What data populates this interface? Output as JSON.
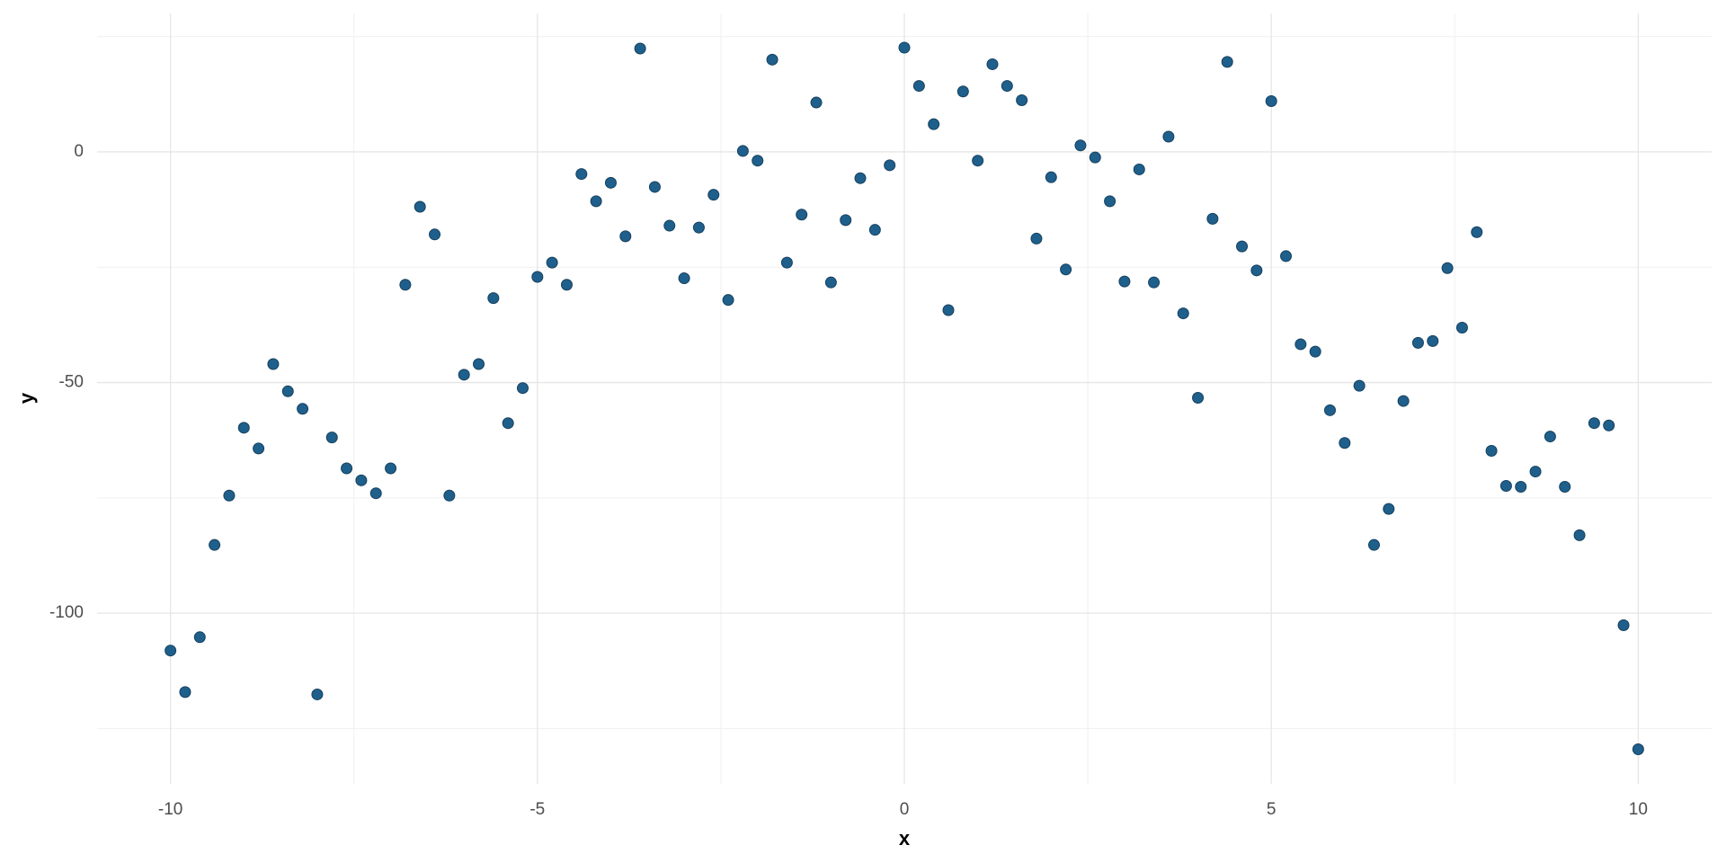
{
  "chart_data": {
    "type": "scatter",
    "x_label": "x",
    "y_label": "y",
    "x": [
      -10,
      -9.8,
      -9.6,
      -9.4,
      -9.2,
      -9,
      -8.8,
      -8.6,
      -8.4,
      -8.2,
      -8,
      -7.8,
      -7.6,
      -7.4,
      -7.2,
      -7,
      -6.8,
      -6.6,
      -6.4,
      -6.2,
      -6,
      -5.8,
      -5.6,
      -5.4,
      -5.2,
      -5,
      -4.8,
      -4.6,
      -4.4,
      -4.2,
      -4,
      -3.8,
      -3.6,
      -3.4,
      -3.2,
      -3,
      -2.8,
      -2.6,
      -2.4,
      -2.2,
      -2,
      -1.8,
      -1.6,
      -1.4,
      -1.2,
      -1,
      -0.8,
      -0.6,
      -0.4,
      -0.2,
      0,
      0.2,
      0.4,
      0.6,
      0.8,
      1,
      1.2,
      1.4,
      1.6,
      1.8,
      2,
      2.2,
      2.4,
      2.6,
      2.8,
      3,
      3.2,
      3.4,
      3.6,
      3.8,
      4,
      4.2,
      4.4,
      4.6,
      4.8,
      5,
      5.2,
      5.4,
      5.6,
      5.8,
      6,
      6.2,
      6.4,
      6.6,
      6.8,
      7,
      7.2,
      7.4,
      7.6,
      7.8,
      8,
      8.2,
      8.4,
      8.6,
      8.8,
      9,
      9.2,
      9.4,
      9.6,
      9.8,
      10
    ],
    "values": [
      -108.1,
      -117.1,
      -105.2,
      -85.2,
      -74.5,
      -59.8,
      -64.3,
      -46.0,
      -51.9,
      -55.7,
      -117.6,
      -61.9,
      -68.6,
      -71.2,
      -74.0,
      -68.6,
      -28.8,
      -11.9,
      -17.9,
      -74.5,
      -48.3,
      -46.0,
      -31.7,
      -58.8,
      -51.2,
      -27.1,
      -24.0,
      -28.8,
      -4.8,
      -10.7,
      -6.7,
      -18.3,
      22.4,
      -7.6,
      -16.0,
      -27.4,
      -16.4,
      -9.3,
      -32.1,
      0.2,
      -1.9,
      20.0,
      -24.0,
      -13.6,
      10.7,
      -28.3,
      -14.8,
      -5.7,
      -16.9,
      -2.9,
      22.6,
      14.3,
      6.0,
      -34.3,
      13.1,
      -1.9,
      19.0,
      14.3,
      11.2,
      -18.8,
      -5.5,
      -25.5,
      1.4,
      -1.2,
      -10.7,
      -28.1,
      -3.8,
      -28.3,
      3.3,
      -35.0,
      -53.3,
      -14.5,
      19.5,
      -20.5,
      -25.7,
      11.0,
      -22.6,
      -41.7,
      -43.3,
      -56.0,
      -63.1,
      -50.7,
      -85.2,
      -77.4,
      -54.0,
      -41.4,
      -41.0,
      -25.2,
      -38.1,
      -17.4,
      -64.8,
      -72.4,
      -72.6,
      -69.3,
      -61.7,
      -72.6,
      -83.1,
      -58.8,
      -59.3,
      -102.6,
      -129.5
    ],
    "color": "#1f5f8b",
    "xlim": [
      -11,
      11
    ],
    "xticks": [
      -10,
      -5,
      0,
      5,
      10
    ],
    "xminor": [
      -7.5,
      -2.5,
      2.5,
      7.5
    ],
    "ylim": [
      -137,
      30
    ],
    "yticks": [
      -100,
      -50,
      0
    ],
    "yminor": [
      -125,
      -75,
      -25,
      25
    ],
    "grid": true
  }
}
